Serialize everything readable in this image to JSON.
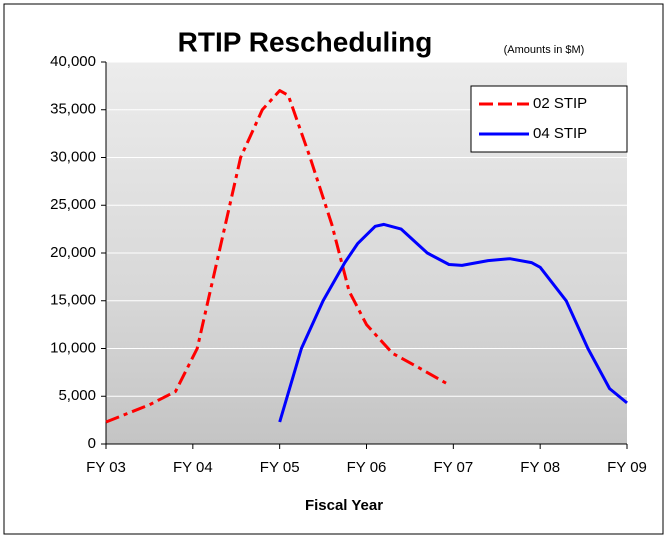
{
  "chart_data": {
    "type": "line",
    "title": "RTIP Rescheduling",
    "subtitle": "(Amounts in $M)",
    "x_label": "Fiscal Year",
    "xlim": [
      3,
      9
    ],
    "xticks": [
      {
        "value": 3,
        "label": "FY 03"
      },
      {
        "value": 4,
        "label": "FY 04"
      },
      {
        "value": 5,
        "label": "FY 05"
      },
      {
        "value": 6,
        "label": "FY 06"
      },
      {
        "value": 7,
        "label": "FY 07"
      },
      {
        "value": 8,
        "label": "FY 08"
      },
      {
        "value": 9,
        "label": "FY 09"
      }
    ],
    "ylim": [
      0,
      40000
    ],
    "yticks": [
      0,
      {
        "value": 5000,
        "label": "5,000"
      },
      {
        "value": 10000,
        "label": "10,000"
      },
      {
        "value": 15000,
        "label": "15,000"
      },
      {
        "value": 20000,
        "label": "20,000"
      },
      {
        "value": 25000,
        "label": "25,000"
      },
      {
        "value": 30000,
        "label": "30,000"
      },
      {
        "value": 35000,
        "label": "35,000"
      },
      {
        "value": 40000,
        "label": "40,000"
      }
    ],
    "grid": true,
    "legend": "upper right",
    "series": [
      {
        "name": "02 STIP",
        "color": "#ff0000",
        "dashed": true,
        "x": [
          3.0,
          3.5,
          3.8,
          4.05,
          4.3,
          4.55,
          4.8,
          5.0,
          5.1,
          5.35,
          5.6,
          5.8,
          6.0,
          6.3,
          6.6,
          6.95
        ],
        "values": [
          2300,
          4100,
          5500,
          10000,
          20000,
          30000,
          35000,
          37000,
          36500,
          30000,
          23000,
          16000,
          12500,
          9500,
          8000,
          6200
        ]
      },
      {
        "name": "04 STIP",
        "color": "#0000ff",
        "dashed": false,
        "x": [
          5.0,
          5.25,
          5.5,
          5.75,
          5.9,
          6.1,
          6.2,
          6.4,
          6.7,
          6.95,
          7.1,
          7.4,
          7.65,
          7.9,
          8.0,
          8.3,
          8.55,
          8.8,
          9.0
        ],
        "values": [
          2300,
          10000,
          15000,
          19000,
          21000,
          22800,
          23000,
          22500,
          20000,
          18800,
          18700,
          19200,
          19400,
          19000,
          18500,
          15000,
          10000,
          5800,
          4300
        ]
      }
    ]
  }
}
